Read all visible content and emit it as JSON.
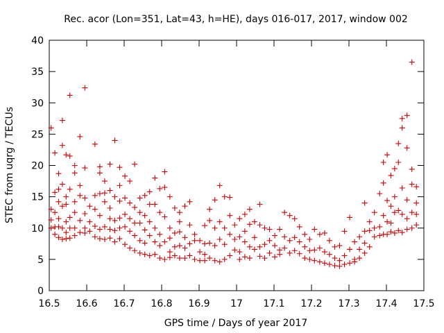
{
  "chart_data": {
    "type": "scatter",
    "title": "Rec. acor (Lon=351, Lat=43, h=HE), days 016-017, 2017, window 002",
    "xlabel": "GPS time / Days of year 2017",
    "ylabel": "STEC from uqrg / TECUs",
    "xlim": [
      16.5,
      17.5
    ],
    "ylim": [
      0,
      40
    ],
    "xticks": [
      16.5,
      16.6,
      16.7,
      16.8,
      16.9,
      17,
      17.1,
      17.2,
      17.3,
      17.4,
      17.5
    ],
    "xtick_labels": [
      "16.5",
      "16.6",
      "16.7",
      "16.8",
      "16.9",
      "17",
      "17.1",
      "17.2",
      "17.3",
      "17.4",
      "17.5"
    ],
    "yticks": [
      0,
      5,
      10,
      15,
      20,
      25,
      30,
      35,
      40
    ],
    "ytick_labels": [
      "0",
      "5",
      "10",
      "15",
      "20",
      "25",
      "30",
      "35",
      "40"
    ],
    "grid": false,
    "legend": "none",
    "marker": "plus",
    "color": "#cc0000",
    "points": [
      [
        16.505,
        26.0
      ],
      [
        16.505,
        13.0
      ],
      [
        16.505,
        11.3
      ],
      [
        16.505,
        10.0
      ],
      [
        16.515,
        22.0
      ],
      [
        16.515,
        15.7
      ],
      [
        16.515,
        12.5
      ],
      [
        16.515,
        10.2
      ],
      [
        16.515,
        9.0
      ],
      [
        16.525,
        18.7
      ],
      [
        16.525,
        16.2
      ],
      [
        16.525,
        14.2
      ],
      [
        16.525,
        11.5
      ],
      [
        16.525,
        10.2
      ],
      [
        16.525,
        8.5
      ],
      [
        16.535,
        23.2
      ],
      [
        16.535,
        27.2
      ],
      [
        16.535,
        17.0
      ],
      [
        16.535,
        13.5
      ],
      [
        16.535,
        10.0
      ],
      [
        16.535,
        8.2
      ],
      [
        16.545,
        21.7
      ],
      [
        16.545,
        15.0
      ],
      [
        16.545,
        13.8
      ],
      [
        16.545,
        11.0
      ],
      [
        16.545,
        9.3
      ],
      [
        16.545,
        8.3
      ],
      [
        16.555,
        31.2
      ],
      [
        16.555,
        21.5
      ],
      [
        16.555,
        16.2
      ],
      [
        16.555,
        11.7
      ],
      [
        16.555,
        10.0
      ],
      [
        16.555,
        8.4
      ],
      [
        16.568,
        20.0
      ],
      [
        16.568,
        18.8
      ],
      [
        16.568,
        14.2
      ],
      [
        16.568,
        12.5
      ],
      [
        16.568,
        10.0
      ],
      [
        16.568,
        8.8
      ],
      [
        16.582,
        24.6
      ],
      [
        16.582,
        16.8
      ],
      [
        16.582,
        15.2
      ],
      [
        16.582,
        11.2
      ],
      [
        16.582,
        9.3
      ],
      [
        16.595,
        32.4
      ],
      [
        16.595,
        19.6
      ],
      [
        16.595,
        14.8
      ],
      [
        16.595,
        12.3
      ],
      [
        16.595,
        10.0
      ],
      [
        16.595,
        9.2
      ],
      [
        16.608,
        13.5
      ],
      [
        16.608,
        11.0
      ],
      [
        16.608,
        9.5
      ],
      [
        16.622,
        23.4
      ],
      [
        16.622,
        15.2
      ],
      [
        16.622,
        13.0
      ],
      [
        16.622,
        10.3
      ],
      [
        16.622,
        8.6
      ],
      [
        16.635,
        19.8
      ],
      [
        16.635,
        18.8
      ],
      [
        16.635,
        15.5
      ],
      [
        16.635,
        12.0
      ],
      [
        16.635,
        9.8
      ],
      [
        16.635,
        8.3
      ],
      [
        16.648,
        17.5
      ],
      [
        16.648,
        15.6
      ],
      [
        16.648,
        14.2
      ],
      [
        16.648,
        10.2
      ],
      [
        16.648,
        8.2
      ],
      [
        16.662,
        20.2
      ],
      [
        16.662,
        16.0
      ],
      [
        16.662,
        13.2
      ],
      [
        16.662,
        11.5
      ],
      [
        16.662,
        9.8
      ],
      [
        16.662,
        8.4
      ],
      [
        16.675,
        24.0
      ],
      [
        16.675,
        15.0
      ],
      [
        16.675,
        11.2
      ],
      [
        16.675,
        9.6
      ],
      [
        16.675,
        7.8
      ],
      [
        16.688,
        19.7
      ],
      [
        16.688,
        16.8
      ],
      [
        16.688,
        14.3
      ],
      [
        16.688,
        11.6
      ],
      [
        16.688,
        10.0
      ],
      [
        16.688,
        8.3
      ],
      [
        16.702,
        18.3
      ],
      [
        16.702,
        14.8
      ],
      [
        16.702,
        12.2
      ],
      [
        16.702,
        10.2
      ],
      [
        16.702,
        7.4
      ],
      [
        16.715,
        17.5
      ],
      [
        16.715,
        14.0
      ],
      [
        16.715,
        11.5
      ],
      [
        16.715,
        9.5
      ],
      [
        16.715,
        6.8
      ],
      [
        16.728,
        20.2
      ],
      [
        16.728,
        13.3
      ],
      [
        16.728,
        10.8
      ],
      [
        16.728,
        8.8
      ],
      [
        16.728,
        6.4
      ],
      [
        16.742,
        14.8
      ],
      [
        16.742,
        12.5
      ],
      [
        16.742,
        10.8
      ],
      [
        16.742,
        8.0
      ],
      [
        16.742,
        6.0
      ],
      [
        16.755,
        15.2
      ],
      [
        16.755,
        12.0
      ],
      [
        16.755,
        9.7
      ],
      [
        16.755,
        7.6
      ],
      [
        16.755,
        5.8
      ],
      [
        16.768,
        15.8
      ],
      [
        16.768,
        13.8
      ],
      [
        16.768,
        11.0
      ],
      [
        16.768,
        8.8
      ],
      [
        16.768,
        5.6
      ],
      [
        16.782,
        18.0
      ],
      [
        16.782,
        13.8
      ],
      [
        16.782,
        10.0
      ],
      [
        16.782,
        7.8
      ],
      [
        16.782,
        5.8
      ],
      [
        16.795,
        16.3
      ],
      [
        16.795,
        12.5
      ],
      [
        16.795,
        9.0
      ],
      [
        16.795,
        7.2
      ],
      [
        16.795,
        5.2
      ],
      [
        16.808,
        19.0
      ],
      [
        16.808,
        16.5
      ],
      [
        16.808,
        11.8
      ],
      [
        16.808,
        7.8
      ],
      [
        16.808,
        5.0
      ],
      [
        16.822,
        15.0
      ],
      [
        16.822,
        10.0
      ],
      [
        16.822,
        8.4
      ],
      [
        16.822,
        6.2
      ],
      [
        16.822,
        5.3
      ],
      [
        16.835,
        13.2
      ],
      [
        16.835,
        9.2
      ],
      [
        16.835,
        7.0
      ],
      [
        16.835,
        5.6
      ],
      [
        16.848,
        12.5
      ],
      [
        16.848,
        11.0
      ],
      [
        16.848,
        9.4
      ],
      [
        16.848,
        7.2
      ],
      [
        16.848,
        5.2
      ],
      [
        16.862,
        13.5
      ],
      [
        16.862,
        8.5
      ],
      [
        16.862,
        6.8
      ],
      [
        16.862,
        5.2
      ],
      [
        16.875,
        14.2
      ],
      [
        16.875,
        10.5
      ],
      [
        16.875,
        7.5
      ],
      [
        16.875,
        5.6
      ],
      [
        16.888,
        9.0
      ],
      [
        16.888,
        8.0
      ],
      [
        16.888,
        5.0
      ],
      [
        16.902,
        8.0
      ],
      [
        16.902,
        6.2
      ],
      [
        16.902,
        4.8
      ],
      [
        16.915,
        10.4
      ],
      [
        16.915,
        7.5
      ],
      [
        16.915,
        5.8
      ],
      [
        16.915,
        4.8
      ],
      [
        16.928,
        13.0
      ],
      [
        16.928,
        11.2
      ],
      [
        16.928,
        7.6
      ],
      [
        16.928,
        5.2
      ],
      [
        16.942,
        14.5
      ],
      [
        16.942,
        10.0
      ],
      [
        16.942,
        7.2
      ],
      [
        16.942,
        4.8
      ],
      [
        16.955,
        16.8
      ],
      [
        16.955,
        11.0
      ],
      [
        16.955,
        8.2
      ],
      [
        16.955,
        4.6
      ],
      [
        16.968,
        15.0
      ],
      [
        16.968,
        10.0
      ],
      [
        16.968,
        7.4
      ],
      [
        16.968,
        5.0
      ],
      [
        16.982,
        14.9
      ],
      [
        16.982,
        12.0
      ],
      [
        16.982,
        9.0
      ],
      [
        16.982,
        5.6
      ],
      [
        16.995,
        10.5
      ],
      [
        16.995,
        8.2
      ],
      [
        16.995,
        6.5
      ],
      [
        17.008,
        11.5
      ],
      [
        17.008,
        8.6
      ],
      [
        17.008,
        6.2
      ],
      [
        17.008,
        5.0
      ],
      [
        17.022,
        12.2
      ],
      [
        17.022,
        9.5
      ],
      [
        17.022,
        7.8
      ],
      [
        17.022,
        5.4
      ],
      [
        17.035,
        13.0
      ],
      [
        17.035,
        10.6
      ],
      [
        17.035,
        7.0
      ],
      [
        17.035,
        5.2
      ],
      [
        17.048,
        11.0
      ],
      [
        17.048,
        8.5
      ],
      [
        17.048,
        6.6
      ],
      [
        17.062,
        13.8
      ],
      [
        17.062,
        10.5
      ],
      [
        17.062,
        7.0
      ],
      [
        17.062,
        5.5
      ],
      [
        17.075,
        10.0
      ],
      [
        17.075,
        7.4
      ],
      [
        17.075,
        5.2
      ],
      [
        17.088,
        9.8
      ],
      [
        17.088,
        8.0
      ],
      [
        17.088,
        6.0
      ],
      [
        17.102,
        8.8
      ],
      [
        17.102,
        7.2
      ],
      [
        17.102,
        5.4
      ],
      [
        17.115,
        9.8
      ],
      [
        17.115,
        6.5
      ],
      [
        17.115,
        5.8
      ],
      [
        17.128,
        12.5
      ],
      [
        17.128,
        8.6
      ],
      [
        17.128,
        6.8
      ],
      [
        17.142,
        12.0
      ],
      [
        17.142,
        8.0
      ],
      [
        17.142,
        6.0
      ],
      [
        17.155,
        11.5
      ],
      [
        17.155,
        8.5
      ],
      [
        17.155,
        6.4
      ],
      [
        17.168,
        10.2
      ],
      [
        17.168,
        7.8
      ],
      [
        17.168,
        5.9
      ],
      [
        17.182,
        9.0
      ],
      [
        17.182,
        7.0
      ],
      [
        17.182,
        5.2
      ],
      [
        17.195,
        8.2
      ],
      [
        17.195,
        6.4
      ],
      [
        17.195,
        5.0
      ],
      [
        17.208,
        9.8
      ],
      [
        17.208,
        6.5
      ],
      [
        17.208,
        4.8
      ],
      [
        17.222,
        9.0
      ],
      [
        17.222,
        6.8
      ],
      [
        17.222,
        4.6
      ],
      [
        17.235,
        9.2
      ],
      [
        17.235,
        6.2
      ],
      [
        17.235,
        4.4
      ],
      [
        17.248,
        8.0
      ],
      [
        17.248,
        5.8
      ],
      [
        17.248,
        4.2
      ],
      [
        17.262,
        7.0
      ],
      [
        17.262,
        5.2
      ],
      [
        17.262,
        4.0
      ],
      [
        17.275,
        7.2
      ],
      [
        17.275,
        4.8
      ],
      [
        17.275,
        3.9
      ],
      [
        17.288,
        9.5
      ],
      [
        17.288,
        5.6
      ],
      [
        17.288,
        4.2
      ],
      [
        17.302,
        11.7
      ],
      [
        17.302,
        6.6
      ],
      [
        17.302,
        4.4
      ],
      [
        17.315,
        7.8
      ],
      [
        17.315,
        5.0
      ],
      [
        17.315,
        4.6
      ],
      [
        17.328,
        8.6
      ],
      [
        17.328,
        6.6
      ],
      [
        17.328,
        5.2
      ],
      [
        17.342,
        14.0
      ],
      [
        17.342,
        9.5
      ],
      [
        17.342,
        7.6
      ],
      [
        17.342,
        6.0
      ],
      [
        17.355,
        11.0
      ],
      [
        17.355,
        9.6
      ],
      [
        17.355,
        7.0
      ],
      [
        17.368,
        12.5
      ],
      [
        17.368,
        10.0
      ],
      [
        17.368,
        8.6
      ],
      [
        17.382,
        15.5
      ],
      [
        17.382,
        10.2
      ],
      [
        17.382,
        8.8
      ],
      [
        17.392,
        20.5
      ],
      [
        17.392,
        17.2
      ],
      [
        17.392,
        12.0
      ],
      [
        17.392,
        9.0
      ],
      [
        17.402,
        21.7
      ],
      [
        17.402,
        14.4
      ],
      [
        17.402,
        11.0
      ],
      [
        17.402,
        9.0
      ],
      [
        17.412,
        18.4
      ],
      [
        17.412,
        13.5
      ],
      [
        17.412,
        10.8
      ],
      [
        17.412,
        9.4
      ],
      [
        17.422,
        19.5
      ],
      [
        17.422,
        15.0
      ],
      [
        17.422,
        12.5
      ],
      [
        17.422,
        9.2
      ],
      [
        17.432,
        23.5
      ],
      [
        17.432,
        20.5
      ],
      [
        17.432,
        12.8
      ],
      [
        17.432,
        9.6
      ],
      [
        17.442,
        26.0
      ],
      [
        17.442,
        27.5
      ],
      [
        17.442,
        16.4
      ],
      [
        17.442,
        12.2
      ],
      [
        17.442,
        9.3
      ],
      [
        17.455,
        28.0
      ],
      [
        17.455,
        22.8
      ],
      [
        17.455,
        14.5
      ],
      [
        17.455,
        11.5
      ],
      [
        17.455,
        9.8
      ],
      [
        17.468,
        36.5
      ],
      [
        17.468,
        19.4
      ],
      [
        17.468,
        17.0
      ],
      [
        17.468,
        12.5
      ],
      [
        17.468,
        10.0
      ],
      [
        17.48,
        16.6
      ],
      [
        17.48,
        14.0
      ],
      [
        17.48,
        12.2
      ],
      [
        17.48,
        10.5
      ]
    ]
  }
}
